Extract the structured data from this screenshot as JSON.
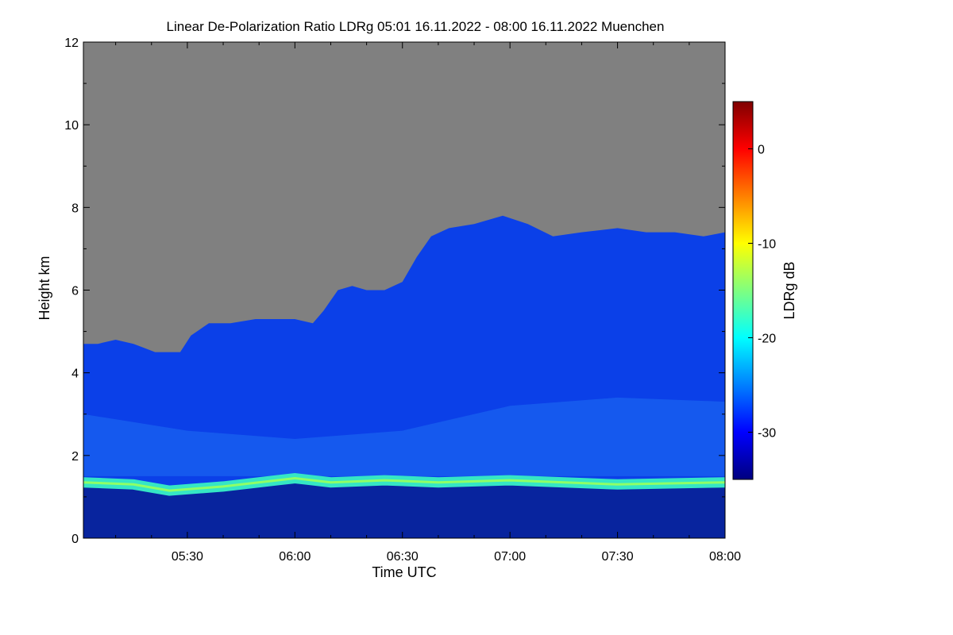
{
  "chart_data": {
    "type": "heatmap",
    "title": "Linear De-Polarization Ratio LDRg   05:01 16.11.2022 - 08:00 16.11.2022 Muenchen",
    "xlabel": "Time UTC",
    "ylabel": "Height km",
    "colorbar_label": "LDRg dB",
    "x_range_minutes_utc": [
      301,
      480
    ],
    "xticks": [
      {
        "label": "05:30",
        "minutes": 330
      },
      {
        "label": "06:00",
        "minutes": 360
      },
      {
        "label": "06:30",
        "minutes": 390
      },
      {
        "label": "07:00",
        "minutes": 420
      },
      {
        "label": "07:30",
        "minutes": 450
      },
      {
        "label": "08:00",
        "minutes": 480
      }
    ],
    "ylim": [
      0,
      12
    ],
    "yticks": [
      {
        "label": "0",
        "value": 0
      },
      {
        "label": "2",
        "value": 2
      },
      {
        "label": "4",
        "value": 4
      },
      {
        "label": "6",
        "value": 6
      },
      {
        "label": "8",
        "value": 8
      },
      {
        "label": "10",
        "value": 10
      },
      {
        "label": "12",
        "value": 12
      }
    ],
    "colorbar_range_db": [
      -35,
      5
    ],
    "colorbar_ticks": [
      {
        "label": "0",
        "value": 0
      },
      {
        "label": "-10",
        "value": -10
      },
      {
        "label": "-20",
        "value": -20
      },
      {
        "label": "-30",
        "value": -30
      }
    ],
    "no_signal_color": "#808080",
    "cloud_top_km": [
      [
        301,
        4.7
      ],
      [
        305,
        4.7
      ],
      [
        310,
        4.8
      ],
      [
        315,
        4.7
      ],
      [
        318,
        4.6
      ],
      [
        321,
        4.5
      ],
      [
        325,
        4.5
      ],
      [
        328,
        4.5
      ],
      [
        331,
        4.9
      ],
      [
        336,
        5.2
      ],
      [
        342,
        5.2
      ],
      [
        349,
        5.3
      ],
      [
        355,
        5.3
      ],
      [
        360,
        5.3
      ],
      [
        365,
        5.2
      ],
      [
        368,
        5.5
      ],
      [
        372,
        6.0
      ],
      [
        376,
        6.1
      ],
      [
        380,
        6.0
      ],
      [
        385,
        6.0
      ],
      [
        390,
        6.2
      ],
      [
        394,
        6.8
      ],
      [
        398,
        7.3
      ],
      [
        403,
        7.5
      ],
      [
        410,
        7.6
      ],
      [
        418,
        7.8
      ],
      [
        425,
        7.6
      ],
      [
        432,
        7.3
      ],
      [
        440,
        7.4
      ],
      [
        450,
        7.5
      ],
      [
        458,
        7.4
      ],
      [
        466,
        7.4
      ],
      [
        474,
        7.3
      ],
      [
        480,
        7.4
      ]
    ],
    "aerosol_layer_top_km": [
      [
        301,
        1.35
      ],
      [
        315,
        1.3
      ],
      [
        325,
        1.15
      ],
      [
        340,
        1.25
      ],
      [
        355,
        1.4
      ],
      [
        360,
        1.45
      ],
      [
        370,
        1.35
      ],
      [
        385,
        1.4
      ],
      [
        400,
        1.35
      ],
      [
        420,
        1.4
      ],
      [
        450,
        1.3
      ],
      [
        480,
        1.35
      ]
    ],
    "aerosol_layer_ldr_db": -20,
    "boundary_layer_ldr_db": -32,
    "cloud_ldr_db": -27,
    "cloud_streak_ldr_db": -25
  }
}
